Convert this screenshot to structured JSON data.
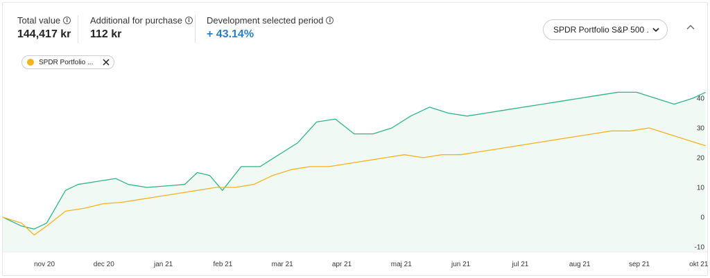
{
  "stats": {
    "total_value": {
      "label": "Total value",
      "value": "144,417 kr"
    },
    "additional": {
      "label": "Additional for purchase",
      "value": "112 kr"
    },
    "development": {
      "label": "Development selected period",
      "value": "+ 43.14%"
    }
  },
  "dropdown": {
    "selected": "SPDR Portfolio S&P 500 ..."
  },
  "chip": {
    "label": "SPDR Portfolio ..."
  },
  "colors": {
    "portfolio": "#2db386",
    "benchmark": "#f5b21d",
    "fill": "#f1f9f5",
    "accent": "#2a7fc0"
  },
  "icons": {
    "info": "info-icon",
    "dropdown": "chevron-down-icon",
    "collapse": "chevron-up-icon",
    "chip_close": "close-icon"
  },
  "chart_data": {
    "type": "line",
    "x_tick_labels": [
      "nov 20",
      "dec 20",
      "jan 21",
      "feb 21",
      "mar 21",
      "apr 21",
      "maj 21",
      "jun 21",
      "jul 21",
      "aug 21",
      "sep 21",
      "okt 21"
    ],
    "y_tick_labels": [
      "-10",
      "0",
      "10",
      "20",
      "30",
      "40"
    ],
    "ylim": [
      -10,
      40
    ],
    "grid": false,
    "series": [
      {
        "color": "#2db386",
        "x": [
          0,
          0.3,
          0.5,
          0.7,
          1.0,
          1.2,
          1.5,
          1.8,
          2.0,
          2.3,
          2.6,
          2.9,
          3.1,
          3.3,
          3.5,
          3.8,
          4.1,
          4.4,
          4.7,
          5.0,
          5.3,
          5.6,
          5.9,
          6.2,
          6.5,
          6.8,
          7.1,
          7.4,
          7.7,
          8.0,
          8.3,
          8.6,
          8.9,
          9.2,
          9.5,
          9.8,
          10.1,
          10.4,
          10.7,
          11.0,
          11.2
        ],
        "values": [
          0,
          -3,
          -4,
          -2,
          9,
          11,
          12,
          13,
          11,
          10,
          10.5,
          11,
          15,
          14,
          9,
          17,
          17,
          21,
          25,
          32,
          33,
          28,
          28,
          30,
          34,
          37,
          35,
          34,
          35,
          36,
          37,
          38,
          39,
          40,
          41,
          42,
          42,
          40,
          38,
          40,
          42
        ]
      },
      {
        "color": "#f5b21d",
        "x": [
          0,
          0.3,
          0.5,
          0.7,
          1.0,
          1.3,
          1.6,
          1.9,
          2.2,
          2.5,
          2.8,
          3.1,
          3.4,
          3.7,
          4.0,
          4.3,
          4.6,
          4.9,
          5.2,
          5.5,
          5.8,
          6.1,
          6.4,
          6.7,
          7.0,
          7.3,
          7.6,
          7.9,
          8.2,
          8.5,
          8.8,
          9.1,
          9.4,
          9.7,
          10.0,
          10.3,
          10.6,
          10.9,
          11.2
        ],
        "values": [
          0,
          -2,
          -6,
          -3,
          2,
          3,
          4.5,
          5,
          6,
          7,
          8,
          9,
          10,
          10,
          11,
          14,
          16,
          17,
          17,
          18,
          19,
          20,
          21,
          20,
          21,
          21,
          22,
          23,
          24,
          25,
          26,
          27,
          28,
          29,
          29,
          30,
          28,
          26,
          24
        ]
      }
    ]
  }
}
